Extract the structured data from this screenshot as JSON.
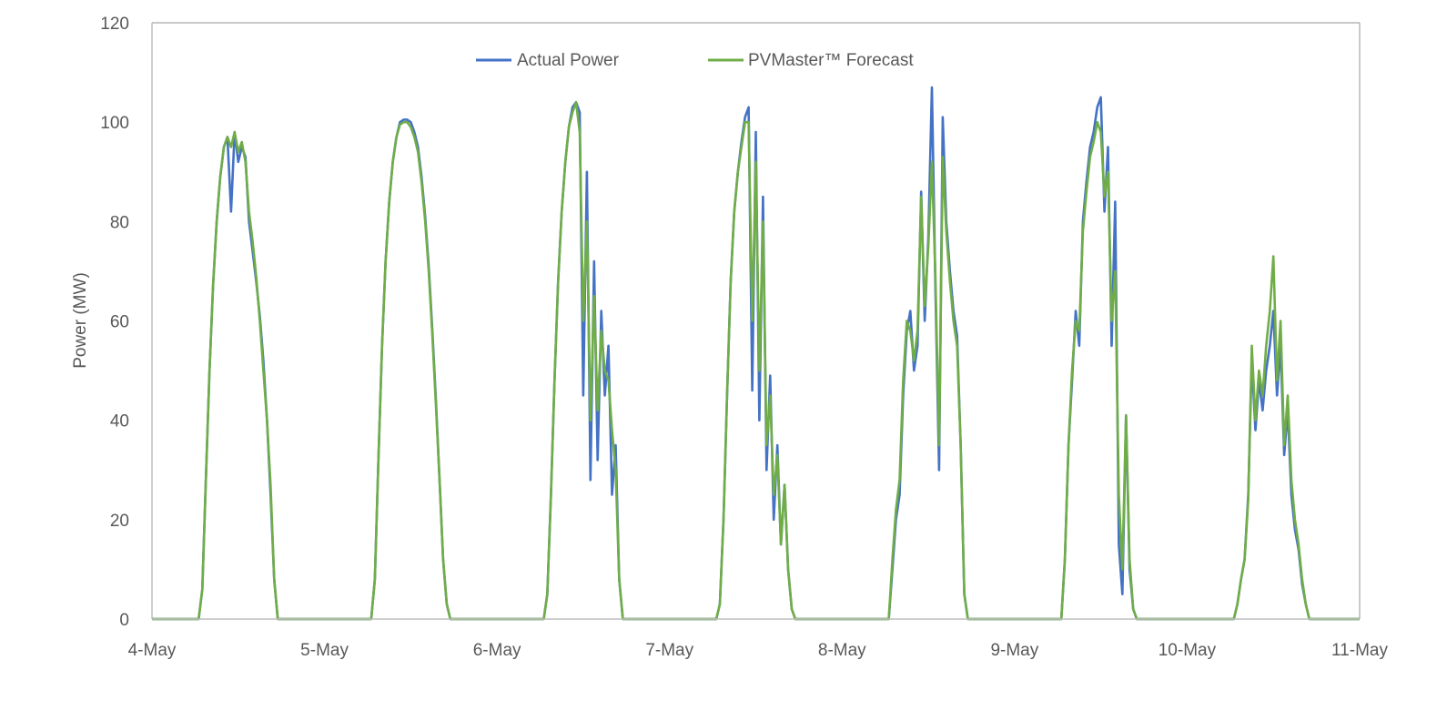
{
  "chart_data": {
    "type": "line",
    "title": "",
    "xlabel": "",
    "ylabel": "Power (MW)",
    "ylim": [
      0,
      120
    ],
    "yticks": [
      "0",
      "20",
      "40",
      "60",
      "80",
      "100",
      "120"
    ],
    "xticks": [
      "4-May",
      "5-May",
      "6-May",
      "7-May",
      "8-May",
      "9-May",
      "10-May",
      "11-May"
    ],
    "grid": false,
    "legend_position": "top-center",
    "x_unit": "hours of day, 30-min steps",
    "day_hours": [
      6.5,
      7,
      7.5,
      8,
      8.5,
      9,
      9.5,
      10,
      10.5,
      11,
      11.5,
      12,
      12.5,
      13,
      13.5,
      14,
      14.5,
      15,
      15.5,
      16,
      16.5,
      17,
      17.5
    ],
    "series": [
      {
        "name": "Actual Power",
        "color": "#4472C4",
        "days": [
          [
            0,
            6,
            28,
            50,
            67,
            80,
            89,
            95,
            97,
            82,
            98,
            92,
            95,
            93,
            80,
            74,
            68,
            61,
            52,
            40,
            25,
            8,
            0
          ],
          [
            0,
            8,
            32,
            55,
            72,
            84,
            92,
            97,
            100,
            100.5,
            100.5,
            100,
            98,
            95,
            89,
            81,
            71,
            58,
            44,
            28,
            12,
            3,
            0
          ],
          [
            0,
            5,
            25,
            48,
            68,
            82,
            92,
            99,
            103,
            104,
            102,
            45,
            90,
            28,
            72,
            32,
            62,
            45,
            55,
            25,
            35,
            8,
            0
          ],
          [
            0,
            3,
            20,
            45,
            68,
            82,
            90,
            96,
            101,
            103,
            46,
            98,
            40,
            85,
            30,
            49,
            20,
            35,
            15,
            27,
            10,
            2,
            0
          ],
          [
            0,
            10,
            20,
            25,
            45,
            58,
            62,
            50,
            55,
            86,
            60,
            77,
            107,
            65,
            30,
            101,
            80,
            70,
            62,
            57,
            35,
            5,
            0
          ],
          [
            0,
            12,
            35,
            48,
            62,
            55,
            80,
            88,
            95,
            98,
            103,
            105,
            82,
            95,
            55,
            84,
            15,
            5,
            41,
            10,
            2,
            0,
            0
          ],
          [
            0,
            3,
            8,
            12,
            25,
            52,
            38,
            48,
            42,
            50,
            55,
            62,
            45,
            55,
            33,
            42,
            25,
            18,
            14,
            7,
            3,
            0,
            0
          ]
        ]
      },
      {
        "name": "PVMaster™ Forecast",
        "color": "#70AD47",
        "days": [
          [
            0,
            6,
            28,
            50,
            67,
            80,
            89,
            95,
            97,
            95,
            98,
            94,
            96,
            92,
            82,
            76,
            69,
            60,
            50,
            40,
            27,
            8,
            0
          ],
          [
            0,
            8,
            32,
            55,
            72,
            84,
            92,
            97,
            99.5,
            100,
            100,
            99,
            97,
            94,
            88,
            80,
            70,
            57,
            43,
            28,
            12,
            3,
            0
          ],
          [
            0,
            5,
            25,
            48,
            68,
            82,
            92,
            99,
            102,
            104,
            98,
            60,
            80,
            40,
            65,
            42,
            58,
            50,
            48,
            38,
            30,
            8,
            0
          ],
          [
            0,
            3,
            20,
            45,
            68,
            82,
            90,
            95,
            100,
            100,
            60,
            92,
            50,
            80,
            35,
            45,
            25,
            33,
            15,
            27,
            10,
            2,
            0
          ],
          [
            0,
            12,
            22,
            28,
            48,
            60,
            58,
            52,
            58,
            85,
            63,
            75,
            92,
            68,
            35,
            93,
            78,
            68,
            60,
            55,
            35,
            5,
            0
          ],
          [
            0,
            12,
            35,
            50,
            60,
            58,
            78,
            86,
            93,
            96,
            100,
            98,
            85,
            90,
            60,
            70,
            25,
            10,
            41,
            12,
            2,
            0,
            0
          ],
          [
            0,
            3,
            8,
            12,
            24,
            55,
            40,
            50,
            45,
            55,
            62,
            73,
            48,
            60,
            35,
            45,
            28,
            20,
            15,
            8,
            3,
            0,
            0
          ]
        ]
      }
    ]
  }
}
